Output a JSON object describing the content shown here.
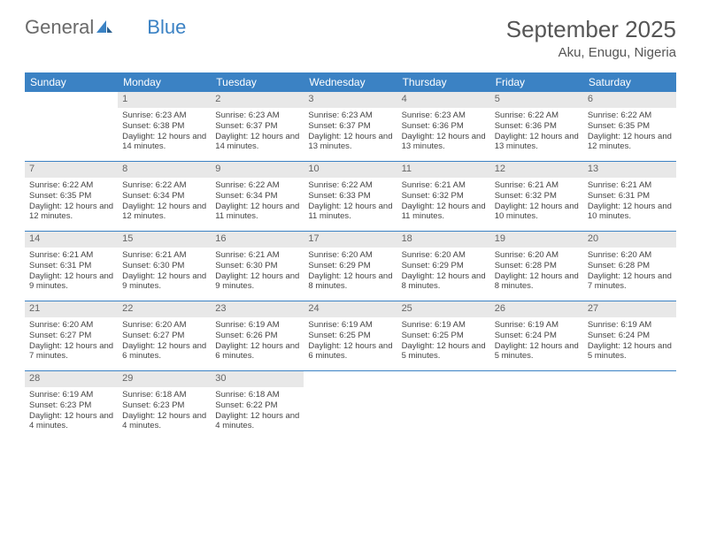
{
  "logo": {
    "text_gray": "General",
    "text_blue": "Blue"
  },
  "title": "September 2025",
  "location": "Aku, Enugu, Nigeria",
  "colors": {
    "header_bg": "#3b82c4",
    "daynum_bg": "#e8e8e8",
    "text_muted": "#666",
    "text_body": "#444",
    "border": "#3b82c4",
    "page_bg": "#ffffff"
  },
  "typography": {
    "title_fontsize": 26,
    "location_fontsize": 15,
    "dayheader_fontsize": 12,
    "daynum_fontsize": 11,
    "body_fontsize": 9.5
  },
  "day_names": [
    "Sunday",
    "Monday",
    "Tuesday",
    "Wednesday",
    "Thursday",
    "Friday",
    "Saturday"
  ],
  "weeks": [
    [
      {
        "n": "",
        "sunrise": "",
        "sunset": "",
        "daylight": ""
      },
      {
        "n": "1",
        "sunrise": "Sunrise: 6:23 AM",
        "sunset": "Sunset: 6:38 PM",
        "daylight": "Daylight: 12 hours and 14 minutes."
      },
      {
        "n": "2",
        "sunrise": "Sunrise: 6:23 AM",
        "sunset": "Sunset: 6:37 PM",
        "daylight": "Daylight: 12 hours and 14 minutes."
      },
      {
        "n": "3",
        "sunrise": "Sunrise: 6:23 AM",
        "sunset": "Sunset: 6:37 PM",
        "daylight": "Daylight: 12 hours and 13 minutes."
      },
      {
        "n": "4",
        "sunrise": "Sunrise: 6:23 AM",
        "sunset": "Sunset: 6:36 PM",
        "daylight": "Daylight: 12 hours and 13 minutes."
      },
      {
        "n": "5",
        "sunrise": "Sunrise: 6:22 AM",
        "sunset": "Sunset: 6:36 PM",
        "daylight": "Daylight: 12 hours and 13 minutes."
      },
      {
        "n": "6",
        "sunrise": "Sunrise: 6:22 AM",
        "sunset": "Sunset: 6:35 PM",
        "daylight": "Daylight: 12 hours and 12 minutes."
      }
    ],
    [
      {
        "n": "7",
        "sunrise": "Sunrise: 6:22 AM",
        "sunset": "Sunset: 6:35 PM",
        "daylight": "Daylight: 12 hours and 12 minutes."
      },
      {
        "n": "8",
        "sunrise": "Sunrise: 6:22 AM",
        "sunset": "Sunset: 6:34 PM",
        "daylight": "Daylight: 12 hours and 12 minutes."
      },
      {
        "n": "9",
        "sunrise": "Sunrise: 6:22 AM",
        "sunset": "Sunset: 6:34 PM",
        "daylight": "Daylight: 12 hours and 11 minutes."
      },
      {
        "n": "10",
        "sunrise": "Sunrise: 6:22 AM",
        "sunset": "Sunset: 6:33 PM",
        "daylight": "Daylight: 12 hours and 11 minutes."
      },
      {
        "n": "11",
        "sunrise": "Sunrise: 6:21 AM",
        "sunset": "Sunset: 6:32 PM",
        "daylight": "Daylight: 12 hours and 11 minutes."
      },
      {
        "n": "12",
        "sunrise": "Sunrise: 6:21 AM",
        "sunset": "Sunset: 6:32 PM",
        "daylight": "Daylight: 12 hours and 10 minutes."
      },
      {
        "n": "13",
        "sunrise": "Sunrise: 6:21 AM",
        "sunset": "Sunset: 6:31 PM",
        "daylight": "Daylight: 12 hours and 10 minutes."
      }
    ],
    [
      {
        "n": "14",
        "sunrise": "Sunrise: 6:21 AM",
        "sunset": "Sunset: 6:31 PM",
        "daylight": "Daylight: 12 hours and 9 minutes."
      },
      {
        "n": "15",
        "sunrise": "Sunrise: 6:21 AM",
        "sunset": "Sunset: 6:30 PM",
        "daylight": "Daylight: 12 hours and 9 minutes."
      },
      {
        "n": "16",
        "sunrise": "Sunrise: 6:21 AM",
        "sunset": "Sunset: 6:30 PM",
        "daylight": "Daylight: 12 hours and 9 minutes."
      },
      {
        "n": "17",
        "sunrise": "Sunrise: 6:20 AM",
        "sunset": "Sunset: 6:29 PM",
        "daylight": "Daylight: 12 hours and 8 minutes."
      },
      {
        "n": "18",
        "sunrise": "Sunrise: 6:20 AM",
        "sunset": "Sunset: 6:29 PM",
        "daylight": "Daylight: 12 hours and 8 minutes."
      },
      {
        "n": "19",
        "sunrise": "Sunrise: 6:20 AM",
        "sunset": "Sunset: 6:28 PM",
        "daylight": "Daylight: 12 hours and 8 minutes."
      },
      {
        "n": "20",
        "sunrise": "Sunrise: 6:20 AM",
        "sunset": "Sunset: 6:28 PM",
        "daylight": "Daylight: 12 hours and 7 minutes."
      }
    ],
    [
      {
        "n": "21",
        "sunrise": "Sunrise: 6:20 AM",
        "sunset": "Sunset: 6:27 PM",
        "daylight": "Daylight: 12 hours and 7 minutes."
      },
      {
        "n": "22",
        "sunrise": "Sunrise: 6:20 AM",
        "sunset": "Sunset: 6:27 PM",
        "daylight": "Daylight: 12 hours and 6 minutes."
      },
      {
        "n": "23",
        "sunrise": "Sunrise: 6:19 AM",
        "sunset": "Sunset: 6:26 PM",
        "daylight": "Daylight: 12 hours and 6 minutes."
      },
      {
        "n": "24",
        "sunrise": "Sunrise: 6:19 AM",
        "sunset": "Sunset: 6:25 PM",
        "daylight": "Daylight: 12 hours and 6 minutes."
      },
      {
        "n": "25",
        "sunrise": "Sunrise: 6:19 AM",
        "sunset": "Sunset: 6:25 PM",
        "daylight": "Daylight: 12 hours and 5 minutes."
      },
      {
        "n": "26",
        "sunrise": "Sunrise: 6:19 AM",
        "sunset": "Sunset: 6:24 PM",
        "daylight": "Daylight: 12 hours and 5 minutes."
      },
      {
        "n": "27",
        "sunrise": "Sunrise: 6:19 AM",
        "sunset": "Sunset: 6:24 PM",
        "daylight": "Daylight: 12 hours and 5 minutes."
      }
    ],
    [
      {
        "n": "28",
        "sunrise": "Sunrise: 6:19 AM",
        "sunset": "Sunset: 6:23 PM",
        "daylight": "Daylight: 12 hours and 4 minutes."
      },
      {
        "n": "29",
        "sunrise": "Sunrise: 6:18 AM",
        "sunset": "Sunset: 6:23 PM",
        "daylight": "Daylight: 12 hours and 4 minutes."
      },
      {
        "n": "30",
        "sunrise": "Sunrise: 6:18 AM",
        "sunset": "Sunset: 6:22 PM",
        "daylight": "Daylight: 12 hours and 4 minutes."
      },
      {
        "n": "",
        "sunrise": "",
        "sunset": "",
        "daylight": ""
      },
      {
        "n": "",
        "sunrise": "",
        "sunset": "",
        "daylight": ""
      },
      {
        "n": "",
        "sunrise": "",
        "sunset": "",
        "daylight": ""
      },
      {
        "n": "",
        "sunrise": "",
        "sunset": "",
        "daylight": ""
      }
    ]
  ]
}
